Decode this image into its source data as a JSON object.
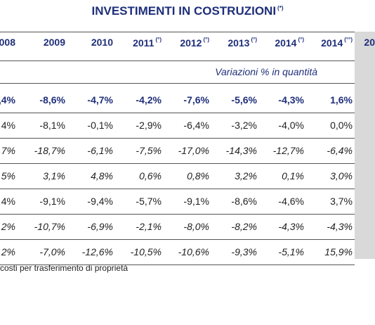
{
  "title": {
    "text": "INVESTIMENTI IN COSTRUZIONI",
    "note": "(*)"
  },
  "table": {
    "headers": [
      {
        "year": "008"
      },
      {
        "year": "2009"
      },
      {
        "year": "2010"
      },
      {
        "year": "2011",
        "note": "(°)"
      },
      {
        "year": "2012",
        "note": "(°)"
      },
      {
        "year": "2013",
        "note": "(°)"
      },
      {
        "year": "2014",
        "note": "(°)"
      },
      {
        "year": "2014",
        "note": "(°°)"
      },
      {
        "year": "20"
      }
    ],
    "subtitle": "Variazioni % in quantità",
    "rows": [
      [
        ",4%",
        "-8,6%",
        "-4,7%",
        "-4,2%",
        "-7,6%",
        "-5,6%",
        "-4,3%",
        "1,6%"
      ],
      [
        "4%",
        "-8,1%",
        "-0,1%",
        "-2,9%",
        "-6,4%",
        "-3,2%",
        "-4,0%",
        "0,0%"
      ],
      [
        "7%",
        "-18,7%",
        "-6,1%",
        "-7,5%",
        "-17,0%",
        "-14,3%",
        "-12,7%",
        "-6,4%"
      ],
      [
        "5%",
        "3,1%",
        "4,8%",
        "0,6%",
        "0,8%",
        "3,2%",
        "0,1%",
        "3,0%"
      ],
      [
        "4%",
        "-9,1%",
        "-9,4%",
        "-5,7%",
        "-9,1%",
        "-8,6%",
        "-4,6%",
        "3,7%"
      ],
      [
        "2%",
        "-10,7%",
        "-6,9%",
        "-2,1%",
        "-8,0%",
        "-8,2%",
        "-4,3%",
        "-4,3%"
      ],
      [
        "2%",
        "-7,0%",
        "-12,6%",
        "-10,5%",
        "-10,6%",
        "-9,3%",
        "-5,1%",
        "15,9%"
      ]
    ]
  },
  "footnote": "costi per trasferimento di proprietà"
}
